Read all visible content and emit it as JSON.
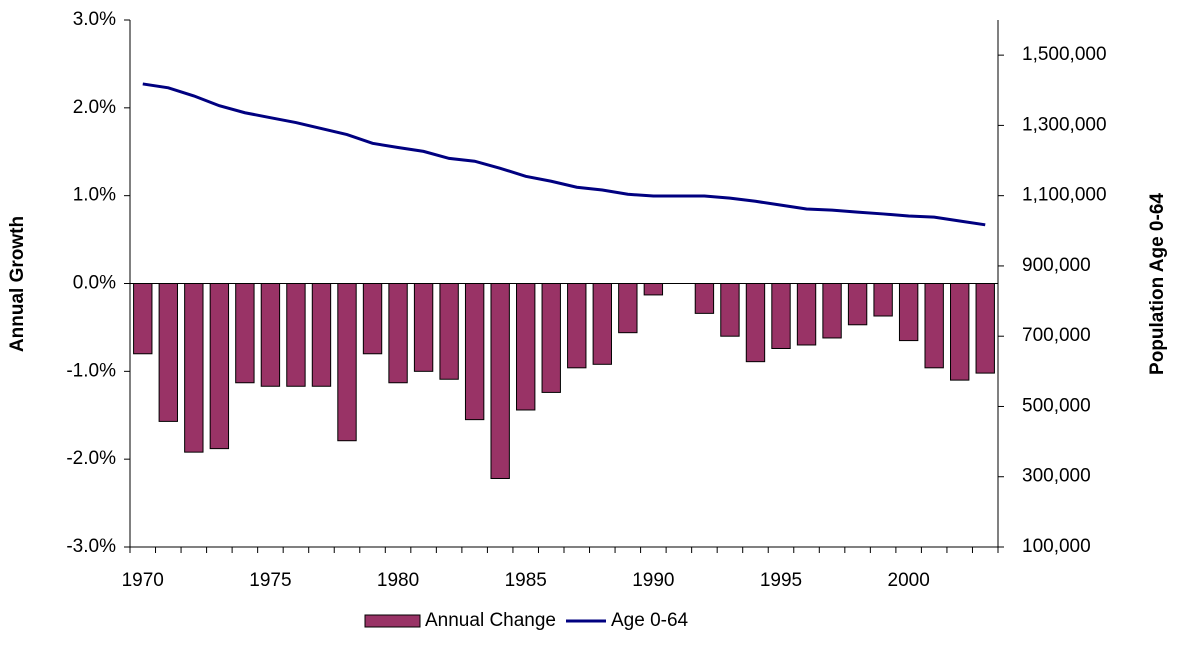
{
  "chart_data": {
    "type": "bar",
    "categories": [
      "1970",
      null,
      null,
      null,
      null,
      "1975",
      null,
      null,
      null,
      null,
      "1980",
      null,
      null,
      null,
      null,
      "1985",
      null,
      null,
      null,
      null,
      "1990",
      null,
      null,
      null,
      null,
      "1995",
      null,
      null,
      null,
      null,
      "2000",
      null,
      null,
      null
    ],
    "series": [
      {
        "name": "Annual Change",
        "type": "bar",
        "color": "#993366",
        "values": [
          -0.8,
          -1.57,
          -1.92,
          -1.88,
          -1.13,
          -1.17,
          -1.17,
          -1.17,
          -1.79,
          -0.8,
          -1.13,
          -1.0,
          -1.09,
          -1.55,
          -2.22,
          -1.44,
          -1.24,
          -0.96,
          -0.92,
          -0.56,
          -0.13,
          0,
          -0.34,
          -0.6,
          -0.89,
          -0.74,
          -0.7,
          -0.62,
          -0.47,
          -0.37,
          -0.65,
          -0.96,
          -1.1,
          -1.02
        ]
      },
      {
        "name": "Age 0-64",
        "type": "line",
        "axis": "y2",
        "color": "#000080",
        "values": [
          1418000,
          1407000,
          1384000,
          1356000,
          1336000,
          1322000,
          1308000,
          1291000,
          1274000,
          1249000,
          1237000,
          1226000,
          1206000,
          1198000,
          1178000,
          1155000,
          1141000,
          1124000,
          1116000,
          1104000,
          1099000,
          1099000,
          1099000,
          1093000,
          1084000,
          1073000,
          1062000,
          1059000,
          1053000,
          1048000,
          1042000,
          1039000,
          1028000,
          1017000
        ]
      }
    ],
    "ylabel": "Annual Growth",
    "y2label": "Population Age 0-64",
    "ylim": [
      -3,
      3
    ],
    "yticks": [
      {
        "value": -3,
        "label": "-3.0%"
      },
      {
        "value": -2,
        "label": "-2.0%"
      },
      {
        "value": -1,
        "label": "-1.0%"
      },
      {
        "value": 0,
        "label": "0.0%"
      },
      {
        "value": 1,
        "label": "1.0%"
      },
      {
        "value": 2,
        "label": "2.0%"
      },
      {
        "value": 3,
        "label": "3.0%"
      }
    ],
    "y2lim": [
      100000,
      1600000
    ],
    "y2ticks": [
      {
        "value": 100000,
        "label": "100,000"
      },
      {
        "value": 300000,
        "label": "300,000"
      },
      {
        "value": 500000,
        "label": "500,000"
      },
      {
        "value": 700000,
        "label": "700,000"
      },
      {
        "value": 900000,
        "label": "900,000"
      },
      {
        "value": 1100000,
        "label": "1,100,000"
      },
      {
        "value": 1300000,
        "label": "1,300,000"
      },
      {
        "value": 1500000,
        "label": "1,500,000"
      }
    ],
    "legend": "bottom"
  }
}
